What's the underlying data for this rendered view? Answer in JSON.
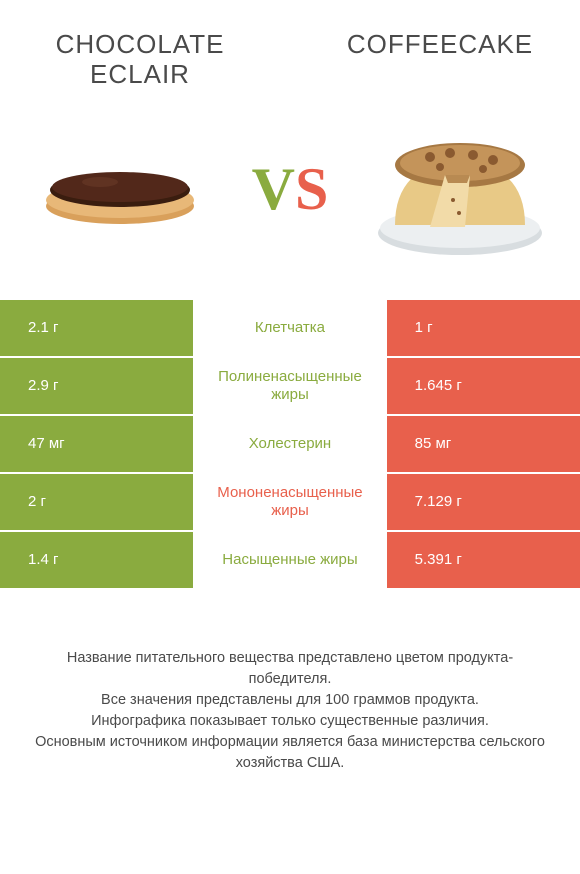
{
  "header": {
    "left_title": "CHOCOLATE\nECLAIR",
    "right_title": "COFFEECAKE"
  },
  "vs": {
    "v": "V",
    "s": "S"
  },
  "colors": {
    "green": "#8aab3f",
    "red": "#e8604c",
    "text": "#4a4a4a",
    "white": "#ffffff"
  },
  "rows": [
    {
      "left": "2.1 г",
      "mid": "Клетчатка",
      "winner": "green",
      "right": "1 г"
    },
    {
      "left": "2.9 г",
      "mid": "Полиненасыщенные жиры",
      "winner": "green",
      "right": "1.645 г"
    },
    {
      "left": "47 мг",
      "mid": "Холестерин",
      "winner": "green",
      "right": "85 мг"
    },
    {
      "left": "2 г",
      "mid": "Мононенасыщенные жиры",
      "winner": "red",
      "right": "7.129 г"
    },
    {
      "left": "1.4 г",
      "mid": "Насыщенные жиры",
      "winner": "green",
      "right": "5.391 г"
    }
  ],
  "footer": {
    "line1": "Название питательного вещества представлено цветом продукта-победителя.",
    "line2": "Все значения представлены для 100 граммов продукта.",
    "line3": "Инфографика показывает только существенные различия.",
    "line4": "Основным источником информации является база министерства сельского хозяйства США."
  }
}
